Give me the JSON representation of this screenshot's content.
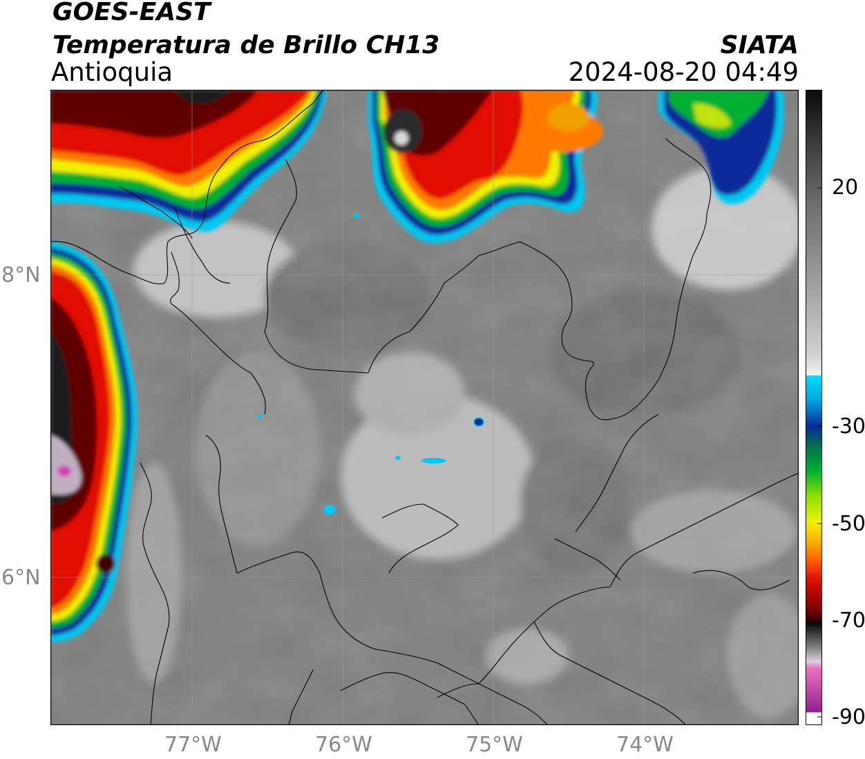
{
  "header": {
    "satellite": "GOES-EAST",
    "product": "Temperatura de Brillo CH13",
    "region": "Antioquia",
    "agency": "SIATA",
    "datetime": "2024-08-20 04:49"
  },
  "axes": {
    "x_ticks": [
      "77°W",
      "76°W",
      "75°W",
      "74°W"
    ],
    "y_ticks": [
      "8°N",
      "6°N"
    ],
    "lon_range": [
      -77.95,
      -72.98
    ],
    "lat_range": [
      4.95,
      9.22
    ],
    "grid": true
  },
  "colorbar": {
    "ticks": [
      "20",
      "-30",
      "-50",
      "-70",
      "-90"
    ],
    "range": [
      -90,
      35
    ],
    "colors": {
      "warm_gray": "#7a7a7a",
      "cyan": "#00c8f0",
      "blue": "#0a2a9a",
      "green": "#00b030",
      "yellow": "#f0f000",
      "orange": "#ff7a00",
      "red": "#e01000",
      "dark_red": "#600000",
      "black": "#0a0a0a",
      "magenta": "#d040b0"
    }
  }
}
